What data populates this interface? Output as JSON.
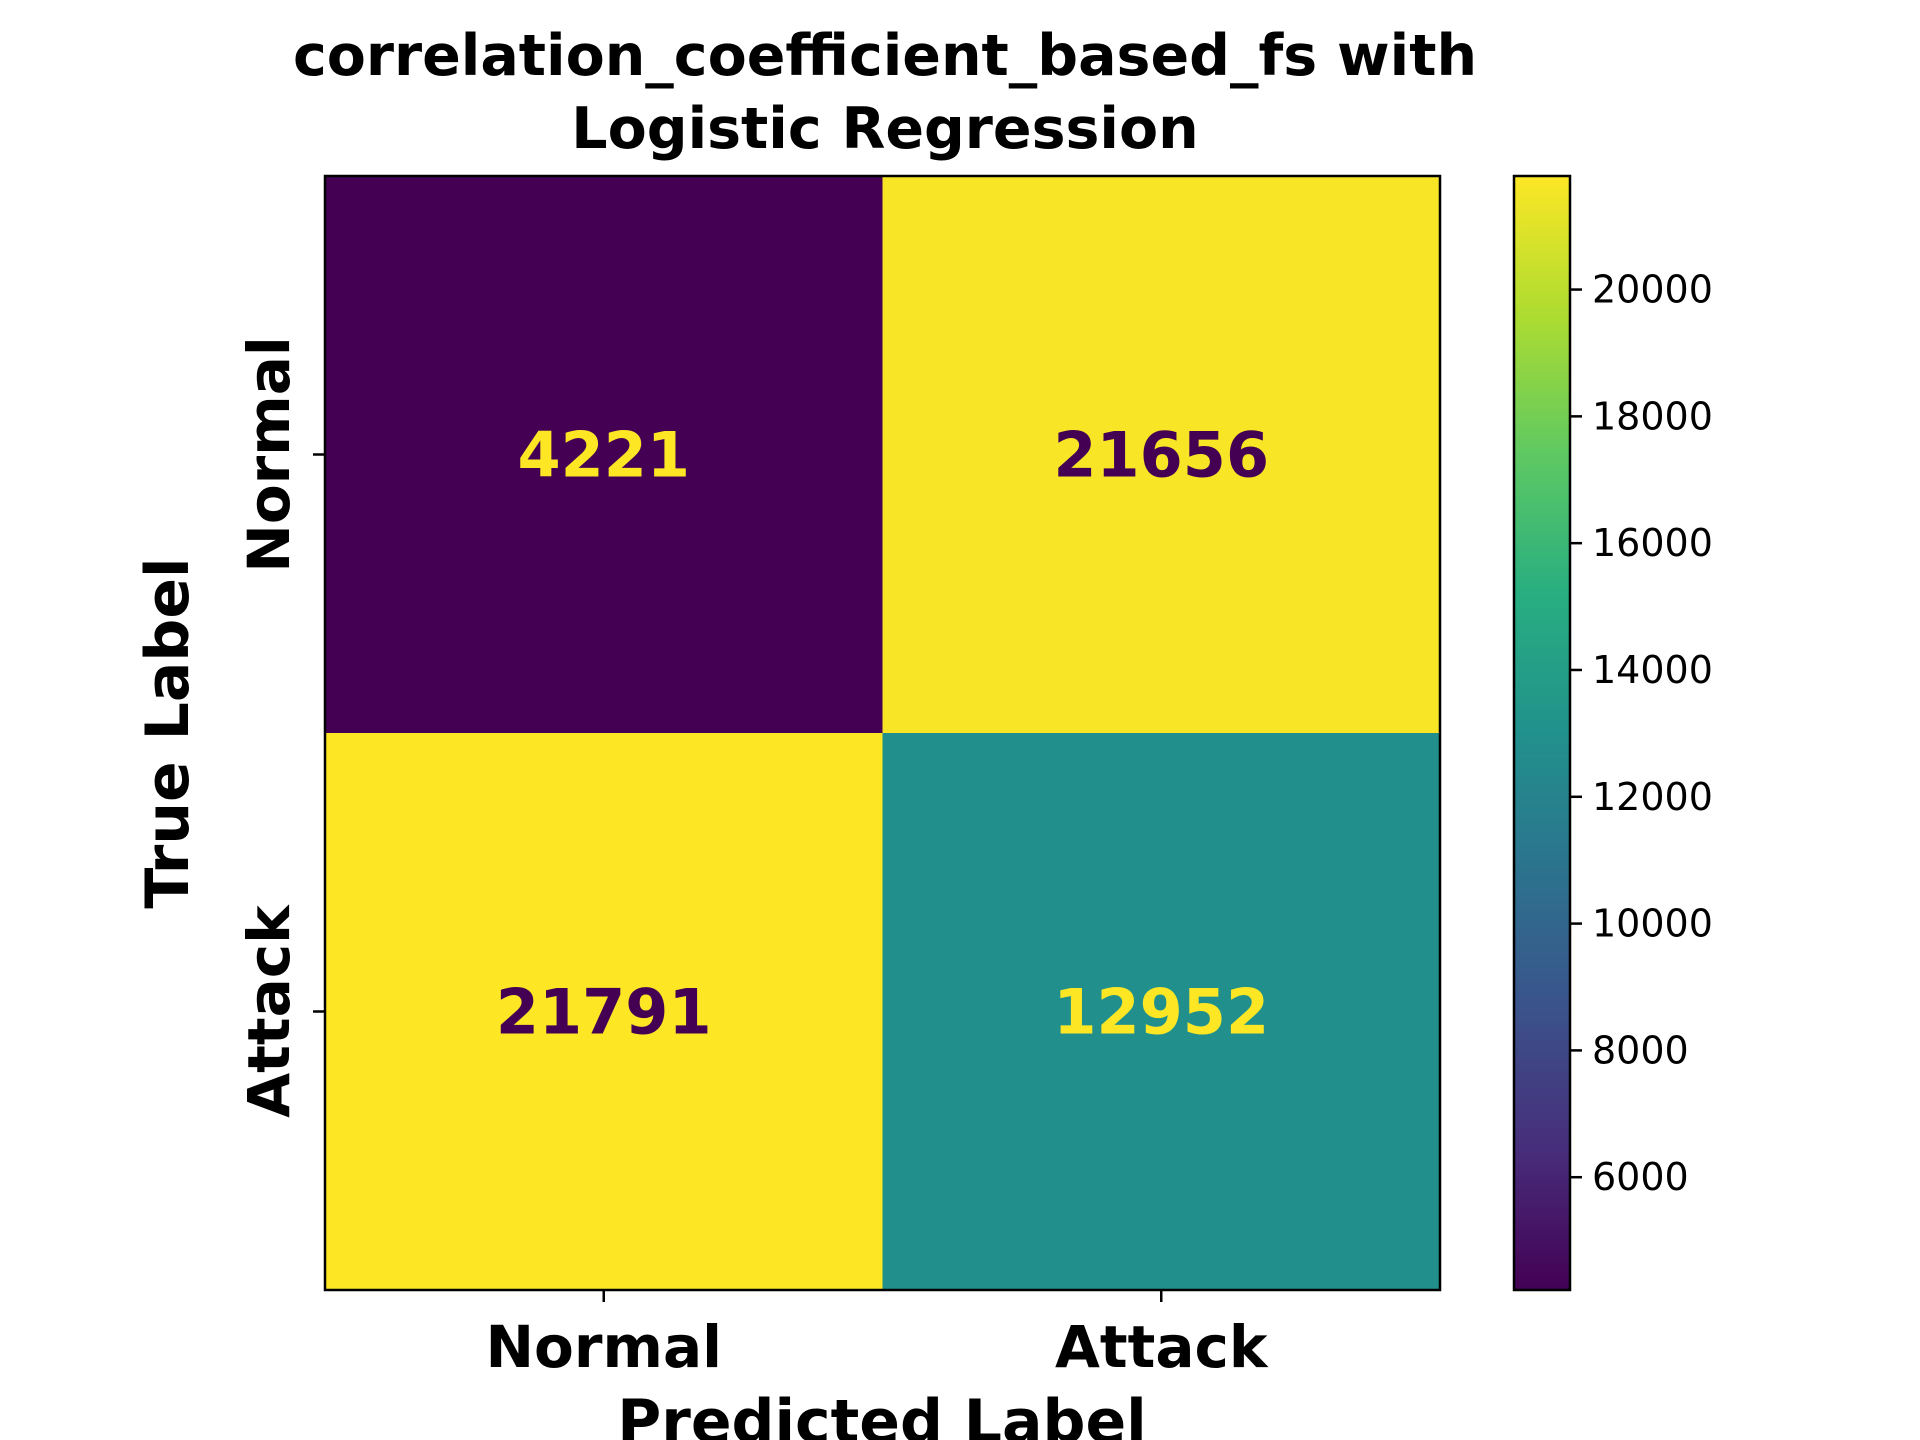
{
  "chart_data": {
    "type": "heatmap",
    "title_lines": [
      "correlation_coefficient_based_fs with",
      "Logistic Regression"
    ],
    "xlabel": "Predicted Label",
    "ylabel": "True Label",
    "x_categories": [
      "Normal",
      "Attack"
    ],
    "y_categories": [
      "Normal",
      "Attack"
    ],
    "matrix": [
      [
        4221,
        21656
      ],
      [
        21791,
        12952
      ]
    ],
    "colormap": "viridis",
    "colorbar": {
      "min": 4221,
      "max": 21791,
      "ticks": [
        6000,
        8000,
        10000,
        12000,
        14000,
        16000,
        18000,
        20000
      ]
    },
    "grid": false
  }
}
